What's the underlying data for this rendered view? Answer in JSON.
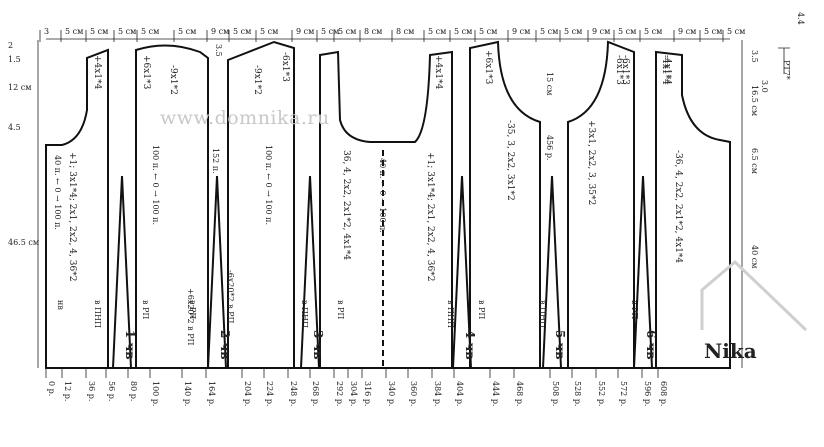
{
  "watermark": "www.domnika.ru",
  "logo_text": "Nika",
  "corner": {
    "top": "4.4",
    "mid": "PT7*",
    "bottom": "3.0"
  },
  "top_widths": [
    "3",
    "5 см",
    "5 см",
    "5 см",
    "5 см",
    "5 см",
    "9 см",
    "5 см",
    "5 см",
    "9 см",
    "5 см",
    "5 см",
    "8 см",
    "8 см",
    "5 см",
    "5 см",
    "5 см",
    "9 см",
    "5 см",
    "5 см",
    "9 см",
    "5 см",
    "5 см",
    "9 см",
    "5 см",
    "5 см"
  ],
  "left_heights": [
    "2",
    "1.5",
    "12 см",
    "4.5",
    "46.5 см"
  ],
  "right_heights": [
    "3.5",
    "16.5 см",
    "6.5 см",
    "40 см"
  ],
  "inner_labels": {
    "h35": "3.5",
    "h15": "15 см"
  },
  "bottom_ticks": [
    "0 р.",
    "12 р.",
    "36 р.",
    "56 р.",
    "80 р.",
    "100 р.",
    "140 р.",
    "164 р.",
    "204 р.",
    "224 р.",
    "248 р.",
    "268 р.",
    "292 р.",
    "304 р.",
    "316 р.",
    "340 р.",
    "360 р.",
    "384 р.",
    "404 р.",
    "444 р.",
    "468 р.",
    "508 р.",
    "528 р.",
    "552 р.",
    "572 р.",
    "596 р.",
    "608 р."
  ],
  "wedges": [
    "1 чв",
    "2 чв",
    "3 чв",
    "4 чв",
    "5 чв",
    "6 чв"
  ],
  "side_labels": [
    "нв",
    "в ПНП",
    "в РП",
    "в РП",
    "в ПНП",
    "в РП",
    "в ПНП",
    "в РП",
    "в ПНП",
    "в РП"
  ],
  "sleeve_rules": [
    "+4x1*4",
    "+6x1*3",
    "-9x1*2",
    "-6x1*3",
    "-9x1*2",
    "-6x1*3",
    "-4x1*4",
    "+4x1*4",
    "+6x1*3",
    "-6x1*3",
    "-4x1*4"
  ],
  "long_rules": [
    "+1; 3x1*4; 2x1, 2x2, 4, 36*2",
    "36, 4, 2x2, 2x1*2, 4x1*4",
    "+1; 3x1*4; 2x1, 2x2, 4, 36*2",
    "-35, 3, 2x2, 3x1*2",
    "+3x1, 2x2, 3, 35*2",
    "-36, 4, 2x2, 2x1*2, 4x1*4"
  ],
  "loop_notes": [
    "40 п. ← 0 → 100 п.",
    "100 п. ← 0 → 100 п.",
    "152 п.",
    "100 п. ← 0 → 100 п.",
    "40 п. ← 0 → 100 п.",
    "456 р."
  ],
  "dart_notes": [
    "+6x20*2 в РП",
    "-6x20*2 в РП"
  ]
}
